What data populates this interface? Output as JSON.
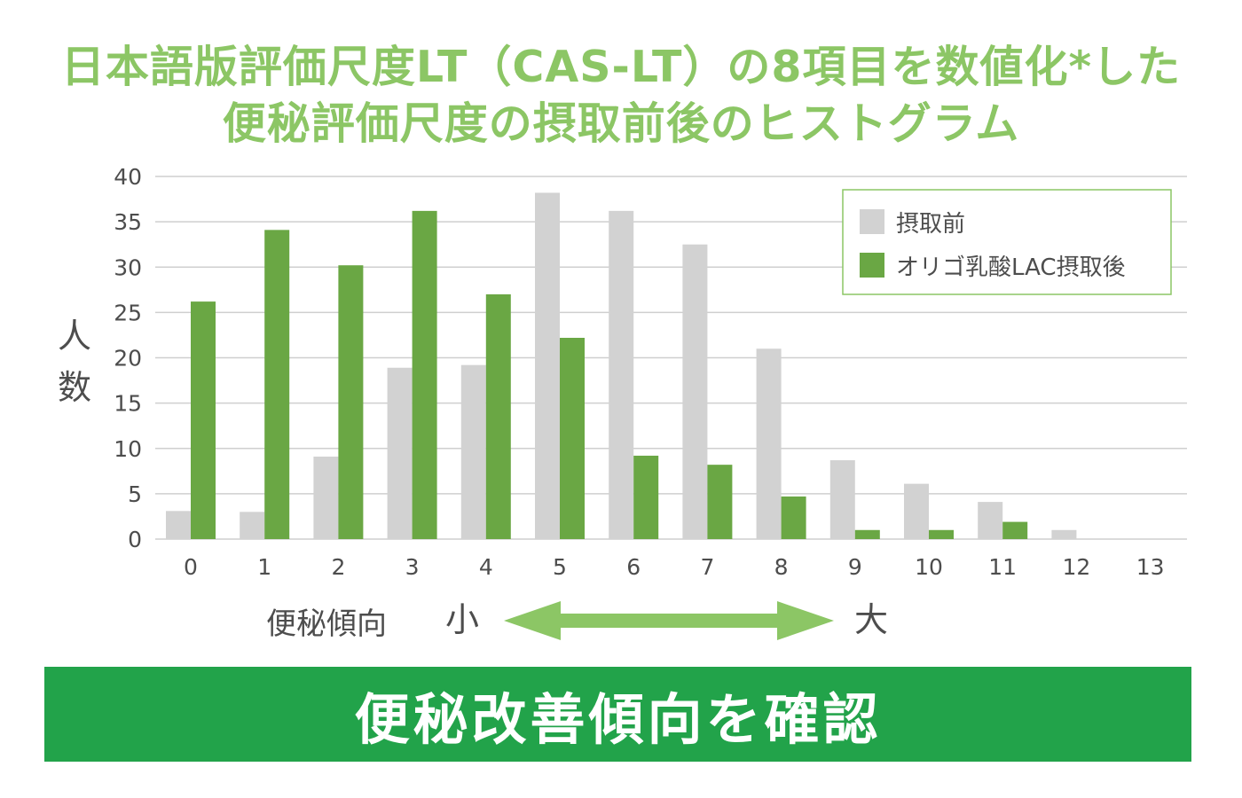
{
  "title": {
    "line1": "日本語版評価尺度LT（CAS-LT）の8項目を数値化*した",
    "line2": "便秘評価尺度の摂取前後のヒストグラム"
  },
  "chart_data": {
    "type": "bar",
    "categories": [
      "0",
      "1",
      "2",
      "3",
      "4",
      "5",
      "6",
      "7",
      "8",
      "9",
      "10",
      "11",
      "12",
      "13"
    ],
    "series": [
      {
        "name": "摂取前",
        "values": [
          3.1,
          3.0,
          9.1,
          18.9,
          19.2,
          38.2,
          36.2,
          32.5,
          21.0,
          8.7,
          6.1,
          4.1,
          1.0,
          0
        ]
      },
      {
        "name": "オリゴ乳酸LAC摂取後",
        "values": [
          26.2,
          34.1,
          30.2,
          36.2,
          27.0,
          22.2,
          9.2,
          8.2,
          4.7,
          1.0,
          1.0,
          1.9,
          0,
          0
        ]
      }
    ],
    "ylim": [
      0,
      40
    ],
    "yticks": [
      0,
      5,
      10,
      15,
      20,
      25,
      30,
      35,
      40
    ],
    "ylabel": "人数",
    "grid": true,
    "legend_position": "top-right"
  },
  "axis_annotation": {
    "label": "便秘傾向",
    "small": "小",
    "large": "大"
  },
  "banner": {
    "text": "便秘改善傾向を確認"
  },
  "colors": {
    "title": "#8cc665",
    "before": "#d2d2d2",
    "after": "#6aa744",
    "arrow": "#8cc665",
    "banner": "#22a34a",
    "legend_border": "#8cc665",
    "grid": "#cfcfcf",
    "text": "#4d4d4d"
  }
}
